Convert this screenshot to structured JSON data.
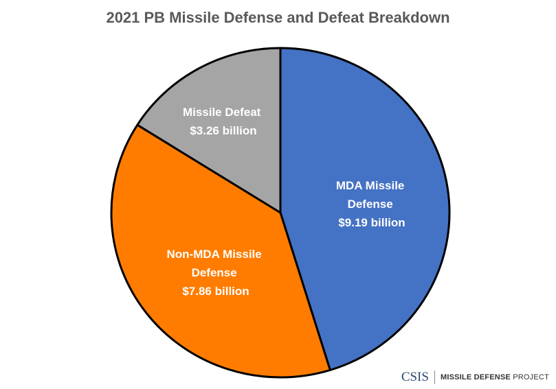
{
  "chart_data": {
    "type": "pie",
    "title": "2021 PB Missile Defense and Defeat Breakdown",
    "unit": "billion USD",
    "slices": [
      {
        "name": "MDA Missile Defense",
        "value": 9.19,
        "label_lines": [
          "MDA Missile",
          "Defense",
          "$9.19 billion"
        ],
        "color": "#4472C4"
      },
      {
        "name": "Non-MDA Missile Defense",
        "value": 7.86,
        "label_lines": [
          "Non-MDA Missile",
          "Defense",
          "$7.86 billion"
        ],
        "color": "#FF7C00"
      },
      {
        "name": "Missile Defeat",
        "value": 3.26,
        "label_lines": [
          "Missile Defeat",
          "$3.26 billion"
        ],
        "color": "#A5A5A5"
      }
    ],
    "start_angle": "top",
    "direction": "clockwise"
  },
  "logo": {
    "org": "CSIS",
    "project_bold": "MISSILE DEFENSE",
    "project_light": "PROJECT"
  }
}
